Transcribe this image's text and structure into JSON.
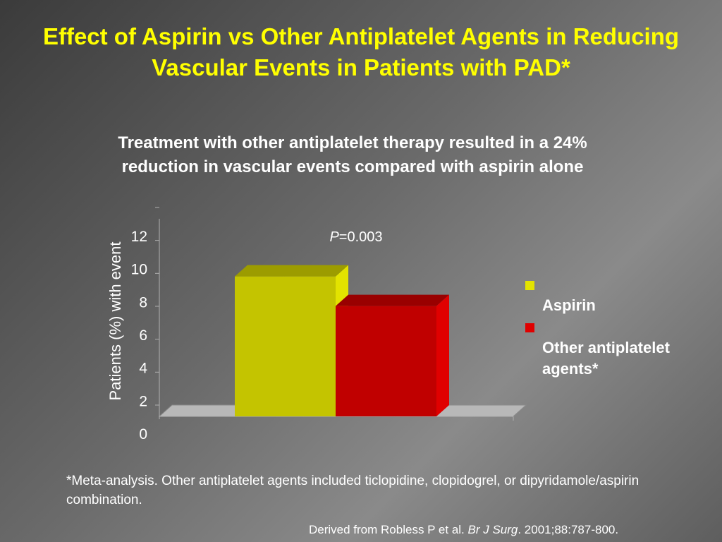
{
  "slide": {
    "title": "Effect of Aspirin vs Other Antiplatelet Agents in Reducing Vascular Events in Patients with PAD*",
    "subtitle": "Treatment with other antiplatelet therapy resulted in a 24% reduction in vascular events compared with aspirin alone",
    "footnote": "*Meta-analysis. Other antiplatelet agents included ticlopidine, clopidogrel, or dipyridamole/aspirin combination.",
    "source_prefix": "Derived from Robless P et al. ",
    "source_journal": "Br J Surg",
    "source_suffix": ". 2001;88:787-800."
  },
  "chart_data": {
    "type": "bar",
    "categories": [
      ""
    ],
    "series": [
      {
        "name": "Aspirin",
        "values": [
          8.5
        ],
        "color": "#c4c400",
        "top_color": "#9c9c00",
        "side_color": "#e3e300"
      },
      {
        "name": "Other antiplatelet agents*",
        "values": [
          6.7
        ],
        "color": "#c00000",
        "top_color": "#990000",
        "side_color": "#e00000"
      }
    ],
    "ylabel": "Patients (%) with event",
    "ylim": [
      0,
      12
    ],
    "yticks": [
      "0",
      "2",
      "4",
      "6",
      "8",
      "10",
      "12"
    ],
    "annotation_p": "P",
    "annotation_value": "=0.003",
    "legend_position": "right",
    "grid": false
  }
}
